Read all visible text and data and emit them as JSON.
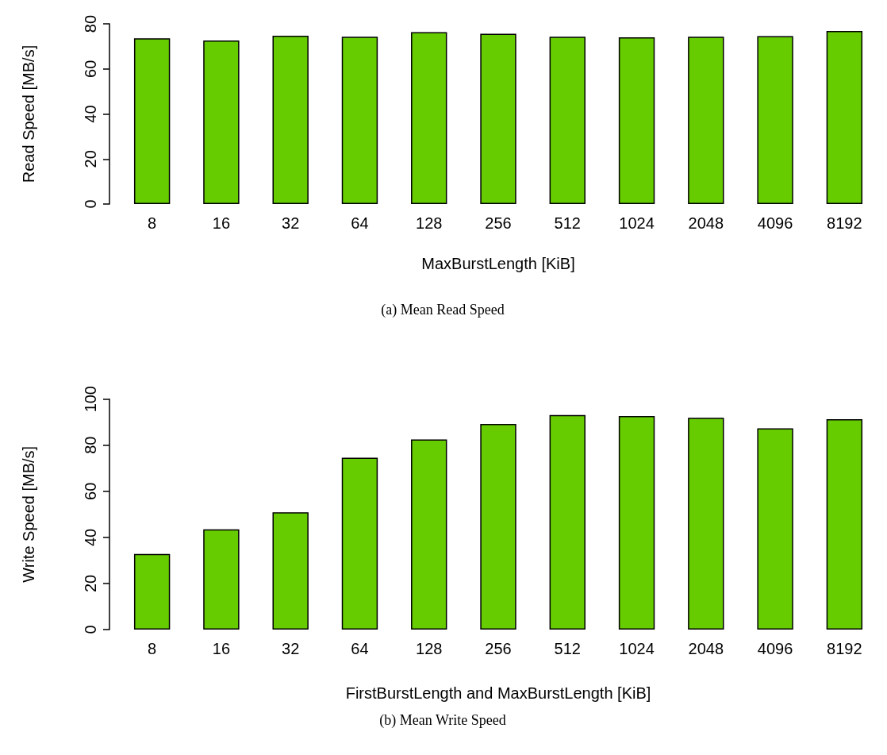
{
  "chart_data": [
    {
      "type": "bar",
      "title": "(a) Mean Read Speed",
      "xlabel": "MaxBurstLength [KiB]",
      "ylabel": "Read Speed [MB/s]",
      "categories": [
        "8",
        "16",
        "32",
        "64",
        "128",
        "256",
        "512",
        "1024",
        "2048",
        "4096",
        "8192"
      ],
      "values": [
        73.6,
        72.6,
        74.7,
        74.3,
        76.3,
        75.6,
        74.3,
        74.0,
        74.3,
        74.5,
        76.8
      ],
      "color": "#66cc00",
      "ylim": [
        0,
        80
      ],
      "yticks": [
        0,
        20,
        40,
        60,
        80
      ]
    },
    {
      "type": "bar",
      "title": "(b) Mean Write Speed",
      "xlabel": "FirstBurstLength and MaxBurstLength [KiB]",
      "ylabel": "Write Speed [MB/s]",
      "categories": [
        "8",
        "16",
        "32",
        "64",
        "128",
        "256",
        "512",
        "1024",
        "2048",
        "4096",
        "8192"
      ],
      "values": [
        32.8,
        43.5,
        50.9,
        74.6,
        82.5,
        89.2,
        93.1,
        92.7,
        91.9,
        87.3,
        91.3
      ],
      "color": "#66cc00",
      "ylim": [
        0,
        100
      ],
      "yticks": [
        0,
        20,
        40,
        60,
        80,
        100
      ]
    }
  ]
}
